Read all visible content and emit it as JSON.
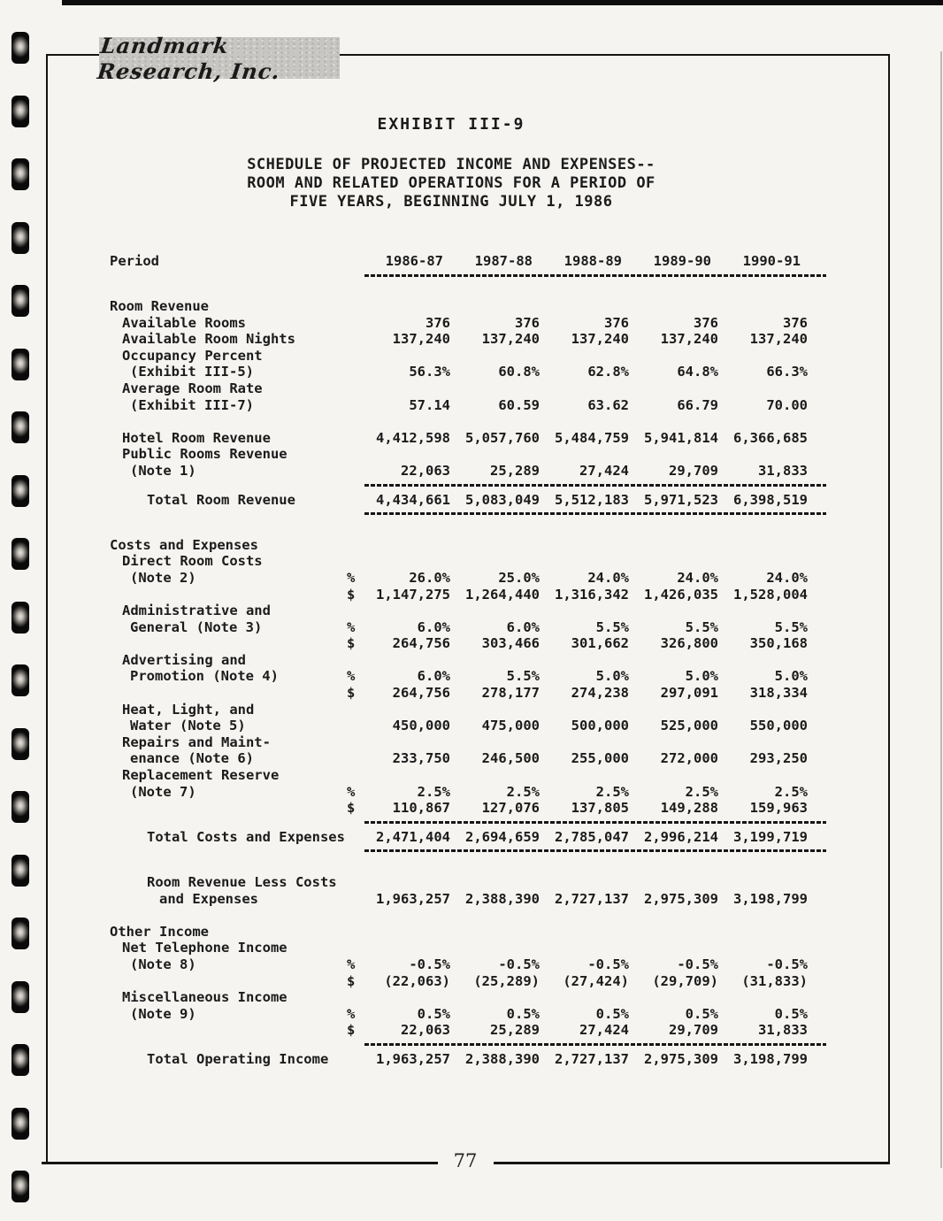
{
  "colors": {
    "ink": "#1b1b1b",
    "paper": "#f5f4f1",
    "plaque": "#c7c6c2"
  },
  "page": {
    "logo_text": "Landmark Research, Inc.",
    "page_number": "77"
  },
  "header": {
    "exhibit_title": "EXHIBIT III-9",
    "subtitle_lines": [
      "SCHEDULE OF PROJECTED INCOME AND EXPENSES--",
      "ROOM AND RELATED OPERATIONS FOR A PERIOD OF",
      "FIVE YEARS, BEGINNING JULY 1, 1986"
    ]
  },
  "table": {
    "period_label": "Period",
    "columns": [
      "1986-87",
      "1987-88",
      "1988-89",
      "1989-90",
      "1990-91"
    ],
    "rows": [
      {
        "label": "Room Revenue",
        "indent": 0
      },
      {
        "label": "Available Rooms",
        "indent": 1,
        "values": [
          "376",
          "376",
          "376",
          "376",
          "376"
        ]
      },
      {
        "label": "Available Room Nights",
        "indent": 1,
        "values": [
          "137,240",
          "137,240",
          "137,240",
          "137,240",
          "137,240"
        ]
      },
      {
        "label": "Occupancy Percent",
        "indent": 1
      },
      {
        "label": "(Exhibit III-5)",
        "indent": 1.5,
        "values": [
          "56.3%",
          "60.8%",
          "62.8%",
          "64.8%",
          "66.3%"
        ]
      },
      {
        "label": "Average Room Rate",
        "indent": 1
      },
      {
        "label": "(Exhibit III-7)",
        "indent": 1.5,
        "values": [
          "57.14",
          "60.59",
          "63.62",
          "66.79",
          "70.00"
        ]
      },
      {
        "type": "blank"
      },
      {
        "label": "Hotel Room Revenue",
        "indent": 1,
        "values": [
          "4,412,598",
          "5,057,760",
          "5,484,759",
          "5,941,814",
          "6,366,685"
        ]
      },
      {
        "label": "Public Rooms Revenue",
        "indent": 1
      },
      {
        "label": "(Note 1)",
        "indent": 1.5,
        "values": [
          "22,063",
          "25,289",
          "27,424",
          "29,709",
          "31,833"
        ]
      },
      {
        "type": "rule"
      },
      {
        "label": "Total Room Revenue",
        "indent": 2,
        "values": [
          "4,434,661",
          "5,083,049",
          "5,512,183",
          "5,971,523",
          "6,398,519"
        ]
      },
      {
        "type": "rule"
      },
      {
        "type": "blank"
      },
      {
        "label": "Costs and Expenses",
        "indent": 0
      },
      {
        "label": "Direct Room Costs",
        "indent": 1
      },
      {
        "label": "(Note 2)",
        "indent": 1.5,
        "sym": "%",
        "values": [
          "26.0%",
          "25.0%",
          "24.0%",
          "24.0%",
          "24.0%"
        ]
      },
      {
        "label": "",
        "sym": "$",
        "values": [
          "1,147,275",
          "1,264,440",
          "1,316,342",
          "1,426,035",
          "1,528,004"
        ]
      },
      {
        "label": "Administrative and",
        "indent": 1
      },
      {
        "label": "General (Note 3)",
        "indent": 1.5,
        "sym": "%",
        "values": [
          "6.0%",
          "6.0%",
          "5.5%",
          "5.5%",
          "5.5%"
        ]
      },
      {
        "label": "",
        "sym": "$",
        "values": [
          "264,756",
          "303,466",
          "301,662",
          "326,800",
          "350,168"
        ]
      },
      {
        "label": "Advertising and",
        "indent": 1
      },
      {
        "label": "Promotion (Note 4)",
        "indent": 1.5,
        "sym": "%",
        "values": [
          "6.0%",
          "5.5%",
          "5.0%",
          "5.0%",
          "5.0%"
        ]
      },
      {
        "label": "",
        "sym": "$",
        "values": [
          "264,756",
          "278,177",
          "274,238",
          "297,091",
          "318,334"
        ]
      },
      {
        "label": "Heat, Light, and",
        "indent": 1
      },
      {
        "label": "Water (Note 5)",
        "indent": 1.5,
        "values": [
          "450,000",
          "475,000",
          "500,000",
          "525,000",
          "550,000"
        ]
      },
      {
        "label": "Repairs and Maint-",
        "indent": 1
      },
      {
        "label": "enance (Note 6)",
        "indent": 1.5,
        "values": [
          "233,750",
          "246,500",
          "255,000",
          "272,000",
          "293,250"
        ]
      },
      {
        "label": "Replacement Reserve",
        "indent": 1
      },
      {
        "label": "(Note 7)",
        "indent": 1.5,
        "sym": "%",
        "values": [
          "2.5%",
          "2.5%",
          "2.5%",
          "2.5%",
          "2.5%"
        ]
      },
      {
        "label": "",
        "sym": "$",
        "values": [
          "110,867",
          "127,076",
          "137,805",
          "149,288",
          "159,963"
        ]
      },
      {
        "type": "rule"
      },
      {
        "label": "Total Costs and Expenses",
        "indent": 2,
        "values": [
          "2,471,404",
          "2,694,659",
          "2,785,047",
          "2,996,214",
          "3,199,719"
        ]
      },
      {
        "type": "rule"
      },
      {
        "type": "blank"
      },
      {
        "label": "Room Revenue Less Costs",
        "indent": 2
      },
      {
        "label": "and Expenses",
        "indent": 2.5,
        "values": [
          "1,963,257",
          "2,388,390",
          "2,727,137",
          "2,975,309",
          "3,198,799"
        ]
      },
      {
        "type": "blank"
      },
      {
        "label": "Other Income",
        "indent": 0
      },
      {
        "label": "Net Telephone Income",
        "indent": 1
      },
      {
        "label": "(Note 8)",
        "indent": 1.5,
        "sym": "%",
        "values": [
          "-0.5%",
          "-0.5%",
          "-0.5%",
          "-0.5%",
          "-0.5%"
        ]
      },
      {
        "label": "",
        "sym": "$",
        "values": [
          "(22,063)",
          "(25,289)",
          "(27,424)",
          "(29,709)",
          "(31,833)"
        ]
      },
      {
        "label": "Miscellaneous Income",
        "indent": 1
      },
      {
        "label": "(Note 9)",
        "indent": 1.5,
        "sym": "%",
        "values": [
          "0.5%",
          "0.5%",
          "0.5%",
          "0.5%",
          "0.5%"
        ]
      },
      {
        "label": "",
        "sym": "$",
        "values": [
          "22,063",
          "25,289",
          "27,424",
          "29,709",
          "31,833"
        ]
      },
      {
        "type": "rule"
      },
      {
        "label": "Total Operating Income",
        "indent": 2,
        "values": [
          "1,963,257",
          "2,388,390",
          "2,727,137",
          "2,975,309",
          "3,198,799"
        ]
      }
    ]
  }
}
